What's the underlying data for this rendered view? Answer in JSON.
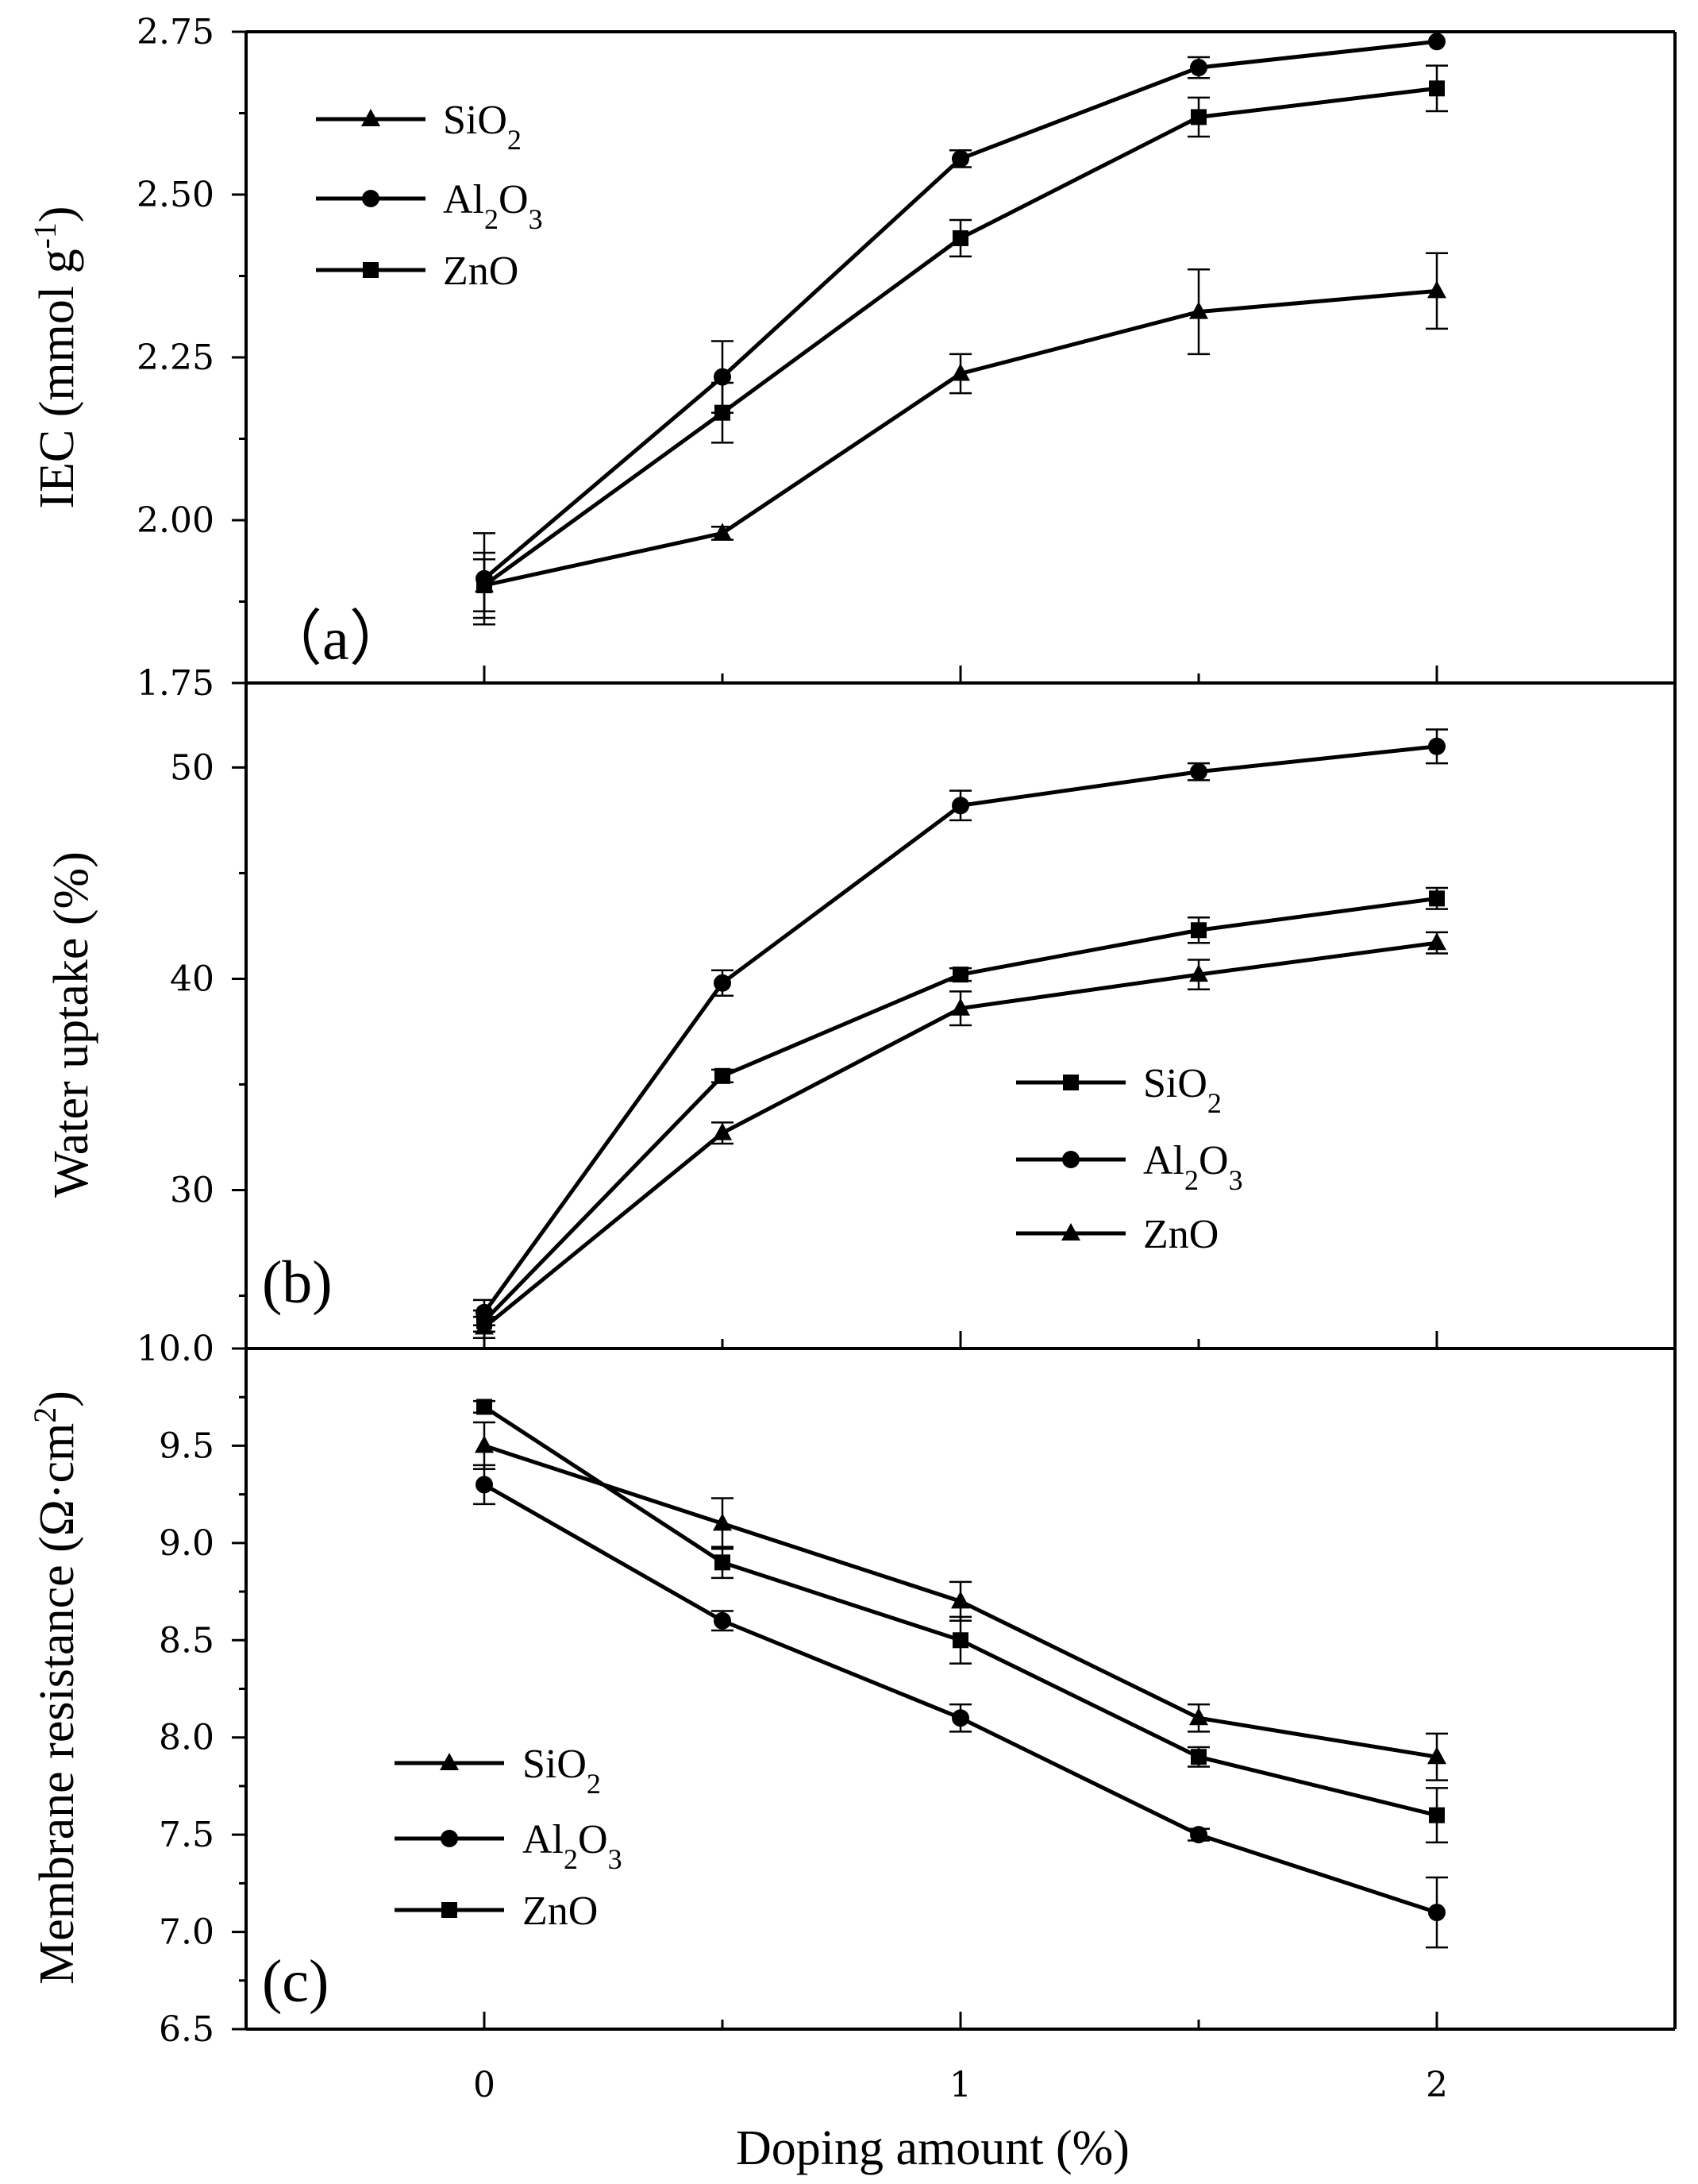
{
  "figure": {
    "xlabel": "Doping amount (%)",
    "xlim": [
      -0.5,
      2.5
    ],
    "xticks": [
      0,
      1,
      2
    ],
    "xtick_labels": [
      "0",
      "1",
      "2"
    ]
  },
  "chart_data": [
    {
      "type": "line",
      "panel_label": "（a）",
      "ylabel": "IEC (mmol g",
      "ylabel_sup": "-1",
      "ylabel_close": ")",
      "ylim": [
        1.75,
        2.75
      ],
      "yticks": [
        1.75,
        2.0,
        2.25,
        2.5,
        2.75
      ],
      "ytick_labels": [
        "1.75",
        "2.00",
        "2.25",
        "2.50",
        "2.75"
      ],
      "legend_position": "top-left",
      "x": [
        0,
        0.5,
        1,
        1.5,
        2
      ],
      "series": [
        {
          "name": "SiO",
          "sub": "2",
          "marker": "triangle",
          "values": [
            1.9,
            1.98,
            2.225,
            2.32,
            2.352
          ],
          "errors": [
            0.05,
            0.01,
            0.03,
            0.065,
            0.058
          ]
        },
        {
          "name": "Al",
          "sub": "2",
          "name2": "O",
          "sub2": "3",
          "marker": "circle",
          "values": [
            1.91,
            2.22,
            2.555,
            2.695,
            2.735
          ],
          "errors": [
            0.07,
            0.055,
            0.013,
            0.016,
            0.0
          ]
        },
        {
          "name": "ZnO",
          "marker": "square",
          "values": [
            1.9,
            2.165,
            2.433,
            2.619,
            2.663
          ],
          "errors": [
            0.04,
            0.046,
            0.028,
            0.03,
            0.035
          ]
        }
      ]
    },
    {
      "type": "line",
      "panel_label": "(b)",
      "ylabel": "Water uptake (%)",
      "ylim": [
        22.5,
        54.0
      ],
      "yticks": [
        30,
        40,
        50
      ],
      "ytick_labels": [
        "30",
        "40",
        "50"
      ],
      "legend_position": "center-right",
      "x": [
        0,
        0.5,
        1,
        1.5,
        2
      ],
      "series": [
        {
          "name": "SiO",
          "sub": "2",
          "marker": "square",
          "values": [
            23.8,
            35.4,
            40.2,
            42.3,
            43.8
          ],
          "errors": [
            0.5,
            0.3,
            0.3,
            0.6,
            0.5
          ]
        },
        {
          "name": "Al",
          "sub": "2",
          "name2": "O",
          "sub2": "3",
          "marker": "circle",
          "values": [
            24.2,
            39.8,
            48.2,
            49.8,
            51.0
          ],
          "errors": [
            0.6,
            0.6,
            0.7,
            0.4,
            0.8
          ]
        },
        {
          "name": "ZnO",
          "marker": "triangle",
          "values": [
            23.5,
            32.7,
            38.6,
            40.2,
            41.7
          ],
          "errors": [
            0.5,
            0.5,
            0.8,
            0.7,
            0.5
          ]
        }
      ]
    },
    {
      "type": "line",
      "panel_label": "(c)",
      "ylabel": "Membrane resistance (Ω·cm",
      "ylabel_sup": "2",
      "ylabel_close": ")",
      "ylim": [
        6.5,
        10.0
      ],
      "yticks": [
        6.5,
        7.0,
        7.5,
        8.0,
        8.5,
        9.0,
        9.5,
        10.0
      ],
      "ytick_labels": [
        "6.5",
        "7.0",
        "7.5",
        "8.0",
        "8.5",
        "9.0",
        "9.5",
        "10.0"
      ],
      "legend_position": "bottom-left",
      "x": [
        0,
        0.5,
        1,
        1.5,
        2
      ],
      "series": [
        {
          "name": "SiO",
          "sub": "2",
          "marker": "triangle",
          "values": [
            9.5,
            9.1,
            8.7,
            8.1,
            7.9
          ],
          "errors": [
            0.12,
            0.13,
            0.1,
            0.07,
            0.12
          ]
        },
        {
          "name": "Al",
          "sub": "2",
          "name2": "O",
          "sub2": "3",
          "marker": "circle",
          "values": [
            9.3,
            8.6,
            8.1,
            7.5,
            7.1
          ],
          "errors": [
            0.1,
            0.05,
            0.07,
            0.03,
            0.18
          ]
        },
        {
          "name": "ZnO",
          "marker": "square",
          "values": [
            9.7,
            8.9,
            8.5,
            7.9,
            7.6
          ],
          "errors": [
            0.03,
            0.08,
            0.12,
            0.05,
            0.14
          ]
        }
      ]
    }
  ]
}
